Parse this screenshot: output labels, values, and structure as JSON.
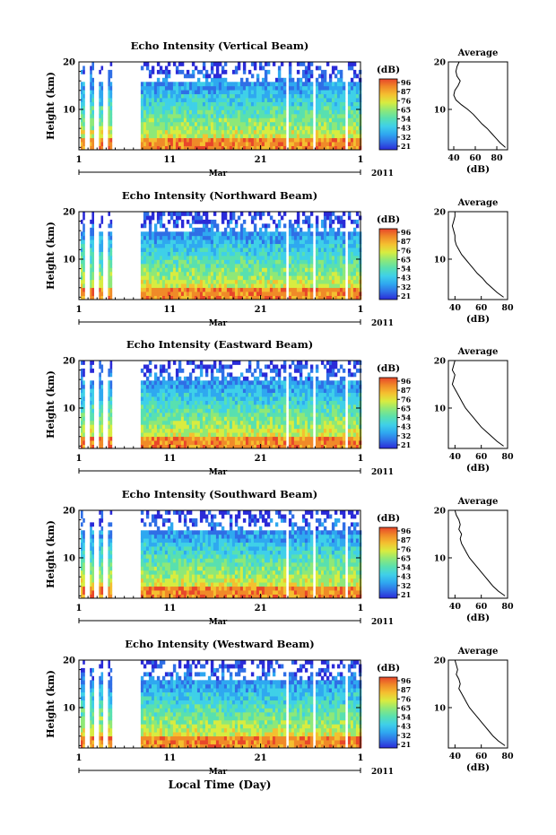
{
  "figure": {
    "xlabel": "Local Time (Day)",
    "month_label": "Mar",
    "year_label": "2011",
    "side_title": "Average",
    "colorbar_unit": "(dB)",
    "colorbar_ticks": [
      "96",
      "87",
      "76",
      "65",
      "54",
      "43",
      "32",
      "21"
    ],
    "colorscale": [
      "#2b2bd8",
      "#2f6fe6",
      "#2fa8f0",
      "#3fd0e8",
      "#58e0b0",
      "#8ee878",
      "#d8ec40",
      "#f4c030",
      "#f08a28",
      "#e8462a"
    ]
  },
  "chart_data": [
    {
      "type": "heatmap",
      "title": "Echo Intensity (Vertical Beam)",
      "ylabel": "Height (km)",
      "ylim": [
        1.5,
        20
      ],
      "yticks": [
        "20",
        "10"
      ],
      "xticks": [
        "1",
        "11",
        "21",
        "1"
      ],
      "colorbar_range_db": [
        21,
        96
      ],
      "profile": {
        "xlabel": "(dB)",
        "xticks": [
          "40",
          "60",
          "80"
        ],
        "xlim": [
          35,
          90
        ],
        "heights_km": [
          20,
          19,
          18,
          17,
          16,
          15,
          14,
          13,
          12,
          11,
          10,
          9,
          8,
          7,
          6,
          5,
          4,
          3,
          2
        ],
        "values_db": [
          45,
          43,
          42,
          43,
          46,
          44,
          41,
          40,
          42,
          47,
          53,
          58,
          62,
          66,
          71,
          75,
          79,
          83,
          88
        ]
      }
    },
    {
      "type": "heatmap",
      "title": "Echo Intensity (Northward Beam)",
      "ylabel": "Height (km)",
      "ylim": [
        1.5,
        20
      ],
      "yticks": [
        "20",
        "10"
      ],
      "xticks": [
        "1",
        "11",
        "21",
        "1"
      ],
      "colorbar_range_db": [
        21,
        96
      ],
      "profile": {
        "xlabel": "(dB)",
        "xticks": [
          "40",
          "60",
          "80"
        ],
        "xlim": [
          35,
          80
        ],
        "heights_km": [
          20,
          19,
          18,
          17,
          16,
          15,
          14,
          13,
          12,
          11,
          10,
          9,
          8,
          7,
          6,
          5,
          4,
          3,
          2
        ],
        "values_db": [
          40,
          40,
          39,
          38,
          39,
          40,
          40,
          41,
          43,
          45,
          48,
          51,
          54,
          57,
          61,
          64,
          68,
          72,
          77
        ]
      }
    },
    {
      "type": "heatmap",
      "title": "Echo Intensity (Eastward Beam)",
      "ylabel": "Height (km)",
      "ylim": [
        1.5,
        20
      ],
      "yticks": [
        "20",
        "10"
      ],
      "xticks": [
        "1",
        "11",
        "21",
        "1"
      ],
      "colorbar_range_db": [
        21,
        96
      ],
      "profile": {
        "xlabel": "(dB)",
        "xticks": [
          "40",
          "60",
          "80"
        ],
        "xlim": [
          35,
          80
        ],
        "heights_km": [
          20,
          19,
          18,
          17,
          16,
          15,
          14,
          13,
          12,
          11,
          10,
          9,
          8,
          7,
          6,
          5,
          4,
          3,
          2
        ],
        "values_db": [
          40,
          39,
          38,
          40,
          39,
          38,
          40,
          42,
          44,
          46,
          48,
          51,
          54,
          57,
          60,
          64,
          68,
          72,
          77
        ]
      }
    },
    {
      "type": "heatmap",
      "title": "Echo Intensity (Southward Beam)",
      "ylabel": "Height (km)",
      "ylim": [
        1.5,
        20
      ],
      "yticks": [
        "20",
        "10"
      ],
      "xticks": [
        "1",
        "11",
        "21",
        "1"
      ],
      "colorbar_range_db": [
        21,
        96
      ],
      "profile": {
        "xlabel": "(dB)",
        "xticks": [
          "40",
          "60",
          "80"
        ],
        "xlim": [
          35,
          80
        ],
        "heights_km": [
          20,
          19,
          18,
          17,
          16,
          15,
          14,
          13,
          12,
          11,
          10,
          9,
          8,
          7,
          6,
          5,
          4,
          3,
          2
        ],
        "values_db": [
          40,
          41,
          43,
          44,
          43,
          45,
          44,
          45,
          47,
          49,
          51,
          54,
          57,
          60,
          63,
          66,
          69,
          73,
          78
        ]
      }
    },
    {
      "type": "heatmap",
      "title": "Echo Intensity (Westward Beam)",
      "ylabel": "Height (km)",
      "ylim": [
        1.5,
        20
      ],
      "yticks": [
        "20",
        "10"
      ],
      "xticks": [
        "1",
        "11",
        "21",
        "1"
      ],
      "colorbar_range_db": [
        21,
        96
      ],
      "profile": {
        "xlabel": "(dB)",
        "xticks": [
          "40",
          "60",
          "80"
        ],
        "xlim": [
          35,
          80
        ],
        "heights_km": [
          20,
          19,
          18,
          17,
          16,
          15,
          14,
          13,
          12,
          11,
          10,
          9,
          8,
          7,
          6,
          5,
          4,
          3,
          2
        ],
        "values_db": [
          40,
          41,
          42,
          41,
          43,
          44,
          43,
          45,
          47,
          49,
          51,
          54,
          57,
          60,
          63,
          66,
          69,
          73,
          78
        ]
      }
    }
  ]
}
